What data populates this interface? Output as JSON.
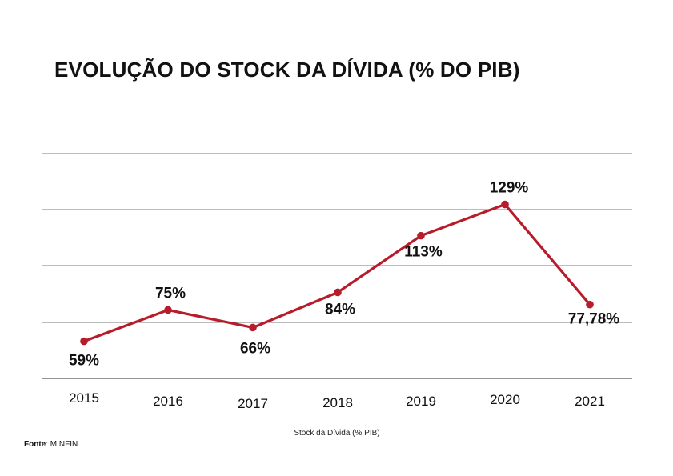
{
  "chart_data": {
    "type": "line",
    "title": "EVOLUÇÃO DO STOCK DA DÍVIDA (% DO PIB)",
    "xlabel": "Stock da Dívida (% PIB)",
    "ylabel": "",
    "categories": [
      "2015",
      "2016",
      "2017",
      "2018",
      "2019",
      "2020",
      "2021"
    ],
    "series": [
      {
        "values": [
          59,
          75,
          66,
          84,
          113,
          129,
          77.78
        ],
        "labels": [
          "59%",
          "75%",
          "66%",
          "84%",
          "113%",
          "129%",
          "77,78%"
        ],
        "color": "#b81c2a"
      }
    ],
    "ylim": [
      40,
      155
    ],
    "grid": true,
    "legend": "none"
  },
  "source": {
    "label": "Fonte",
    "separator": ": ",
    "value": "MINFIN"
  }
}
